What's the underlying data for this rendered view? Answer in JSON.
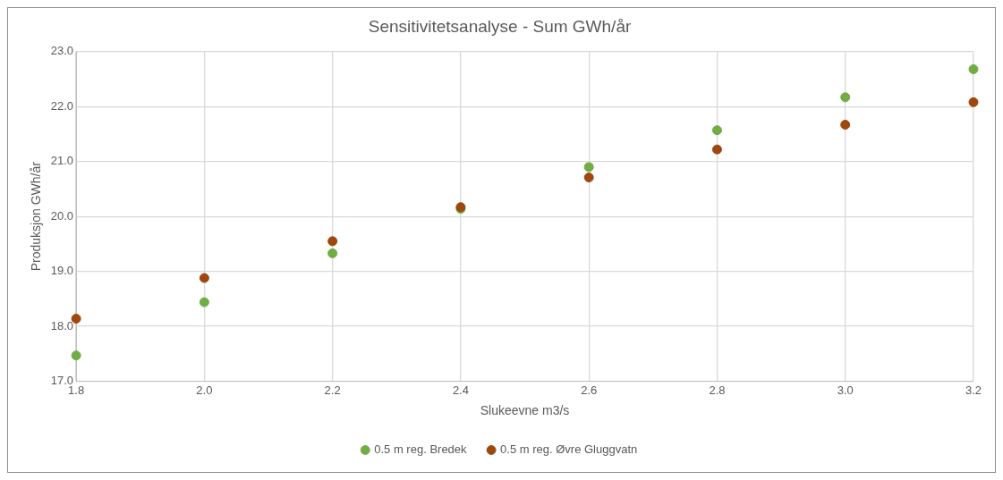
{
  "chart_data": {
    "type": "scatter",
    "title": "Sensitivitetsanalyse - Sum GWh/år",
    "xlabel": "Slukeevne m3/s",
    "ylabel": "Produksjon GWh/år",
    "x": [
      1.8,
      2.0,
      2.2,
      2.4,
      2.6,
      2.8,
      3.0,
      3.2
    ],
    "series": [
      {
        "name": "0.5 m reg. Bredek",
        "color": "#70ad47",
        "values": [
          17.47,
          18.44,
          19.33,
          20.14,
          20.9,
          21.57,
          22.17,
          22.68
        ]
      },
      {
        "name": "0.5 m reg. Øvre Gluggvatn",
        "color": "#9e480e",
        "values": [
          18.14,
          18.88,
          19.55,
          20.17,
          20.71,
          21.22,
          21.67,
          22.08
        ]
      }
    ],
    "xlim": [
      1.8,
      3.2
    ],
    "xticks": [
      {
        "value": 1.8,
        "label": "1.8"
      },
      {
        "value": 2.0,
        "label": "2.0"
      },
      {
        "value": 2.2,
        "label": "2.2"
      },
      {
        "value": 2.4,
        "label": "2.4"
      },
      {
        "value": 2.6,
        "label": "2.6"
      },
      {
        "value": 2.8,
        "label": "2.8"
      },
      {
        "value": 3.0,
        "label": "3.0"
      },
      {
        "value": 3.2,
        "label": "3.2"
      }
    ],
    "ylim": [
      17,
      23
    ],
    "yticks": [
      {
        "value": 17,
        "label": "17.0"
      },
      {
        "value": 18,
        "label": "18.0"
      },
      {
        "value": 19,
        "label": "19.0"
      },
      {
        "value": 20,
        "label": "20.0"
      },
      {
        "value": 21,
        "label": "21.0"
      },
      {
        "value": 22,
        "label": "22.0"
      },
      {
        "value": 23,
        "label": "23.0"
      }
    ],
    "grid": true,
    "legend": "bottom",
    "marker": "circle"
  }
}
